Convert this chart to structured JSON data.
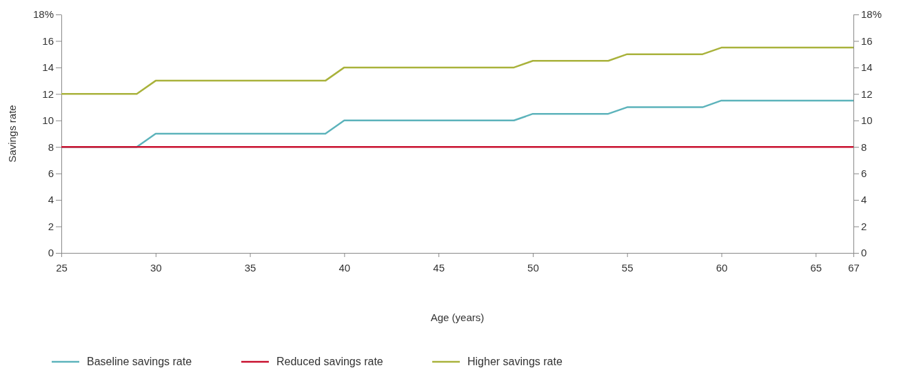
{
  "chart_data": {
    "type": "line",
    "xlabel": "Age (years)",
    "ylabel": "Savings rate",
    "xlim": [
      25,
      67
    ],
    "xticks": [
      25,
      30,
      35,
      40,
      45,
      50,
      55,
      60,
      65,
      67
    ],
    "ylim": [
      0,
      18
    ],
    "yticks": [
      0,
      2,
      4,
      6,
      8,
      10,
      12,
      14,
      16,
      {
        "value": 18,
        "label": "18%"
      }
    ],
    "y2lim": [
      0,
      18
    ],
    "y2ticks": [
      0,
      2,
      4,
      6,
      8,
      10,
      12,
      14,
      16,
      {
        "value": 18,
        "label": "18%"
      }
    ],
    "legend": "bottom",
    "marker": "none",
    "line_style": "solid",
    "series": [
      {
        "name": "Baseline savings rate",
        "color": "#5cb3bb",
        "x": [
          25,
          29,
          30,
          39,
          40,
          49,
          50,
          54,
          55,
          59,
          60,
          67
        ],
        "values": [
          8,
          8,
          9,
          9,
          10,
          10,
          10.5,
          10.5,
          11,
          11,
          11.5,
          11.5
        ]
      },
      {
        "name": "Reduced savings rate",
        "color": "#c8102e",
        "x": [
          25,
          67
        ],
        "values": [
          8,
          8
        ]
      },
      {
        "name": "Higher savings rate",
        "color": "#a9b23b",
        "x": [
          25,
          29,
          30,
          39,
          40,
          49,
          50,
          54,
          55,
          59,
          60,
          67
        ],
        "values": [
          12,
          12,
          13,
          13,
          14,
          14,
          14.5,
          14.5,
          15,
          15,
          15.5,
          15.5
        ]
      }
    ]
  }
}
